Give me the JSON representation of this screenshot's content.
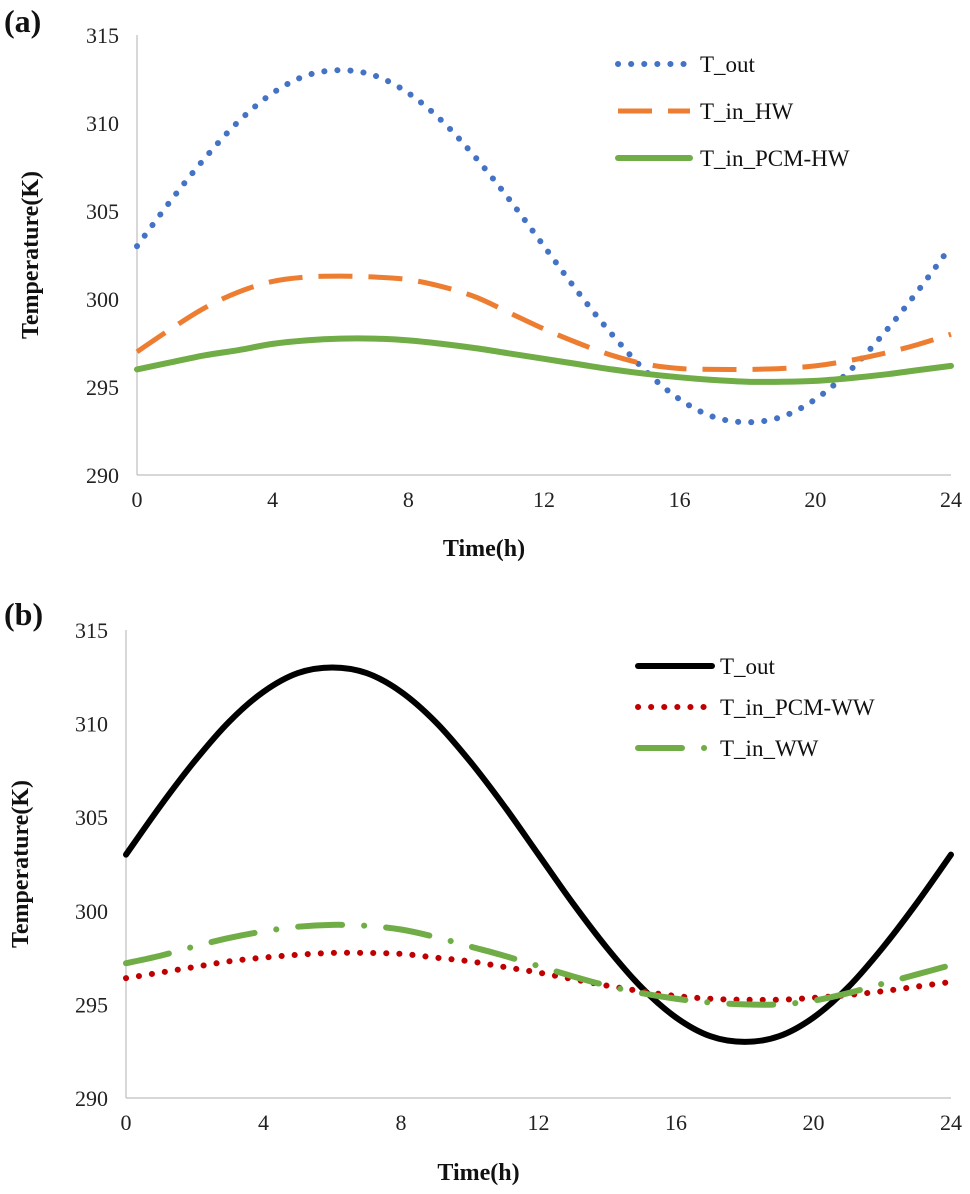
{
  "chart_data": [
    {
      "id": "a",
      "panel_label": "(a)",
      "type": "line",
      "xlabel": "Time(h)",
      "ylabel": "Temperature(K)",
      "xlim": [
        0,
        24
      ],
      "ylim": [
        290,
        315
      ],
      "xticks": [
        0,
        4,
        8,
        12,
        16,
        20,
        24
      ],
      "yticks": [
        290,
        295,
        300,
        305,
        310,
        315
      ],
      "grid": false,
      "legend_position": "top-right",
      "series": [
        {
          "name": "T_out",
          "style": "dotted",
          "color": "#4472C4",
          "x": [
            0,
            1,
            2,
            3,
            4,
            5,
            6,
            7,
            8,
            9,
            10,
            11,
            12,
            13,
            14,
            15,
            16,
            17,
            18,
            19,
            20,
            21,
            22,
            23,
            24
          ],
          "y": [
            303.0,
            305.6,
            308.0,
            310.1,
            311.7,
            312.7,
            313.0,
            312.7,
            311.7,
            310.1,
            308.0,
            305.6,
            303.0,
            300.4,
            298.0,
            295.9,
            294.3,
            293.3,
            293.0,
            293.3,
            294.3,
            295.9,
            298.0,
            300.4,
            303.0
          ]
        },
        {
          "name": "T_in_HW",
          "style": "dashed",
          "color": "#ED7D31",
          "x": [
            0,
            1,
            2,
            3,
            4,
            5,
            6,
            7,
            8,
            9,
            10,
            11,
            12,
            13,
            14,
            15,
            16,
            17,
            18,
            19,
            20,
            21,
            22,
            23,
            24
          ],
          "y": [
            297.0,
            298.3,
            299.5,
            300.4,
            301.0,
            301.25,
            301.3,
            301.25,
            301.1,
            300.7,
            300.1,
            299.2,
            298.3,
            297.5,
            296.8,
            296.3,
            296.05,
            296.0,
            296.0,
            296.05,
            296.2,
            296.5,
            296.9,
            297.4,
            298.0
          ]
        },
        {
          "name": "T_in_PCM-HW",
          "style": "solid",
          "color": "#70AD47",
          "x": [
            0,
            1,
            2,
            3,
            4,
            5,
            6,
            7,
            8,
            9,
            10,
            11,
            12,
            13,
            14,
            15,
            16,
            17,
            18,
            19,
            20,
            21,
            22,
            23,
            24
          ],
          "y": [
            296.0,
            296.4,
            296.8,
            297.1,
            297.45,
            297.65,
            297.75,
            297.75,
            297.65,
            297.45,
            297.2,
            296.9,
            296.6,
            296.3,
            296.0,
            295.75,
            295.55,
            295.4,
            295.3,
            295.3,
            295.35,
            295.5,
            295.7,
            295.95,
            296.2
          ]
        }
      ]
    },
    {
      "id": "b",
      "panel_label": "(b)",
      "type": "line",
      "xlabel": "Time(h)",
      "ylabel": "Temperature(K)",
      "xlim": [
        0,
        24
      ],
      "ylim": [
        290,
        315
      ],
      "xticks": [
        0,
        4,
        8,
        12,
        16,
        20,
        24
      ],
      "yticks": [
        290,
        295,
        300,
        305,
        310,
        315
      ],
      "grid": false,
      "legend_position": "top-right",
      "series": [
        {
          "name": "T_out",
          "style": "solid",
          "color": "#000000",
          "x": [
            0,
            1,
            2,
            3,
            4,
            5,
            6,
            7,
            8,
            9,
            10,
            11,
            12,
            13,
            14,
            15,
            16,
            17,
            18,
            19,
            20,
            21,
            22,
            23,
            24
          ],
          "y": [
            303.0,
            305.6,
            308.0,
            310.1,
            311.7,
            312.7,
            313.0,
            312.7,
            311.7,
            310.1,
            308.0,
            305.6,
            303.0,
            300.4,
            298.0,
            295.9,
            294.3,
            293.3,
            293.0,
            293.3,
            294.3,
            295.9,
            298.0,
            300.4,
            303.0
          ]
        },
        {
          "name": "T_in_PCM-WW",
          "style": "dotted",
          "color": "#C00000",
          "x": [
            0,
            1,
            2,
            3,
            4,
            5,
            6,
            7,
            8,
            9,
            10,
            11,
            12,
            13,
            14,
            15,
            16,
            17,
            18,
            19,
            20,
            21,
            22,
            23,
            24
          ],
          "y": [
            296.4,
            296.7,
            297.0,
            297.3,
            297.5,
            297.65,
            297.75,
            297.75,
            297.7,
            297.5,
            297.3,
            297.0,
            296.7,
            296.35,
            296.0,
            295.7,
            295.45,
            295.3,
            295.25,
            295.25,
            295.35,
            295.5,
            295.7,
            295.95,
            296.2
          ]
        },
        {
          "name": "T_in_WW",
          "style": "dash-dot",
          "color": "#70AD47",
          "x": [
            0,
            1,
            2,
            3,
            4,
            5,
            6,
            7,
            8,
            9,
            10,
            11,
            12,
            13,
            14,
            15,
            16,
            17,
            18,
            19,
            20,
            21,
            22,
            23,
            24
          ],
          "y": [
            297.2,
            297.6,
            298.1,
            298.55,
            298.9,
            299.15,
            299.25,
            299.2,
            299.0,
            298.6,
            298.1,
            297.6,
            297.05,
            296.5,
            296.0,
            295.6,
            295.3,
            295.1,
            295.0,
            295.0,
            295.2,
            295.6,
            296.1,
            296.6,
            297.1
          ]
        }
      ]
    }
  ]
}
